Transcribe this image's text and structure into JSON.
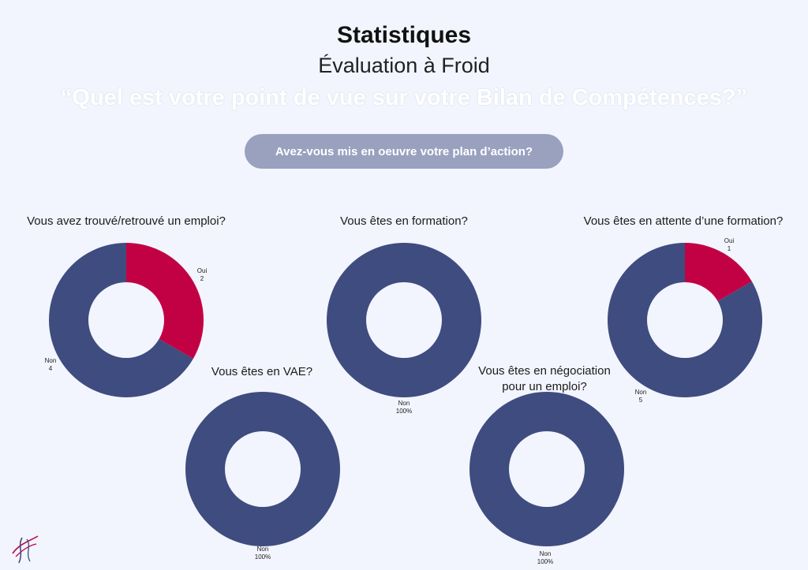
{
  "header": {
    "title": "Statistiques",
    "subtitle": "Évaluation à Froid",
    "question": "“Quel est votre point de vue sur votre Bilan de Compétences?”",
    "section_button": "Avez-vous mis en oeuvre votre plan d’action?"
  },
  "colors": {
    "oui": "#c20145",
    "non": "#3f4c7f",
    "background": "#f2f5fd",
    "pill": "#9aa1bf"
  },
  "chart_data": [
    {
      "type": "pie",
      "title": "Vous avez trouvé/retrouvé un emploi?",
      "slices": [
        {
          "label": "Oui",
          "value": 2,
          "display": "2"
        },
        {
          "label": "Non",
          "value": 4,
          "display": "4"
        }
      ]
    },
    {
      "type": "pie",
      "title": "Vous êtes en formation?",
      "slices": [
        {
          "label": "Non",
          "value": 100,
          "display": "100%"
        }
      ]
    },
    {
      "type": "pie",
      "title": "Vous êtes en attente d’une formation?",
      "slices": [
        {
          "label": "Oui",
          "value": 1,
          "display": "1"
        },
        {
          "label": "Non",
          "value": 5,
          "display": "5"
        }
      ]
    },
    {
      "type": "pie",
      "title": "Vous êtes en VAE?",
      "slices": [
        {
          "label": "Non",
          "value": 100,
          "display": "100%"
        }
      ]
    },
    {
      "type": "pie",
      "title_lines": [
        "Vous êtes en négociation",
        "pour un emploi?"
      ],
      "slices": [
        {
          "label": "Non",
          "value": 100,
          "display": "100%"
        }
      ]
    }
  ]
}
